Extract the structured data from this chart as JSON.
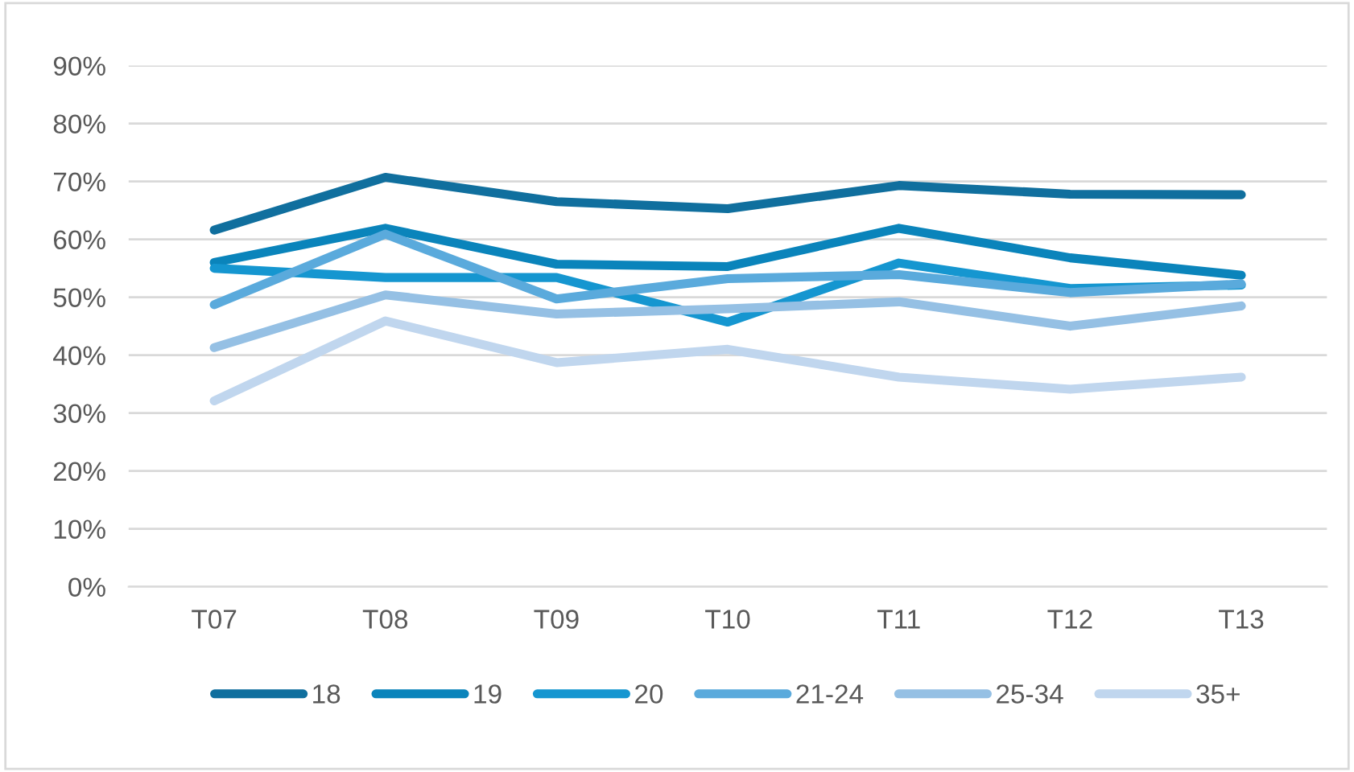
{
  "chart_data": {
    "type": "line",
    "categories": [
      "T07",
      "T08",
      "T09",
      "T10",
      "T11",
      "T12",
      "T13"
    ],
    "ylim": [
      0,
      90
    ],
    "yticks": [
      {
        "value": 0,
        "label": "0%"
      },
      {
        "value": 10,
        "label": "10%"
      },
      {
        "value": 20,
        "label": "20%"
      },
      {
        "value": 30,
        "label": "30%"
      },
      {
        "value": 40,
        "label": "40%"
      },
      {
        "value": 50,
        "label": "50%"
      },
      {
        "value": 60,
        "label": "60%"
      },
      {
        "value": 70,
        "label": "70%"
      },
      {
        "value": 80,
        "label": "80%"
      },
      {
        "value": 90,
        "label": "90%"
      }
    ],
    "grid": "y",
    "legend": "bottom",
    "marker": "none",
    "line_style": "solid",
    "series": [
      {
        "name": "18",
        "color": "#106f9e",
        "values": [
          61.6,
          70.7,
          66.5,
          65.3,
          69.3,
          67.8,
          67.7
        ]
      },
      {
        "name": "19",
        "color": "#0a84bb",
        "values": [
          56.0,
          61.9,
          55.7,
          55.3,
          61.9,
          56.8,
          53.8
        ]
      },
      {
        "name": "20",
        "color": "#1596d0",
        "values": [
          55.0,
          53.4,
          53.4,
          45.7,
          55.9,
          51.5,
          52.1
        ]
      },
      {
        "name": "21-24",
        "color": "#5aaadc",
        "values": [
          48.7,
          60.9,
          49.7,
          53.2,
          53.9,
          50.8,
          52.3
        ]
      },
      {
        "name": "25-34",
        "color": "#95c0e4",
        "values": [
          41.3,
          50.4,
          47.1,
          48.0,
          49.2,
          45.0,
          48.5
        ]
      },
      {
        "name": "35+",
        "color": "#c0d6ee",
        "values": [
          32.1,
          45.9,
          38.7,
          41.0,
          36.2,
          34.1,
          36.2
        ]
      }
    ]
  }
}
